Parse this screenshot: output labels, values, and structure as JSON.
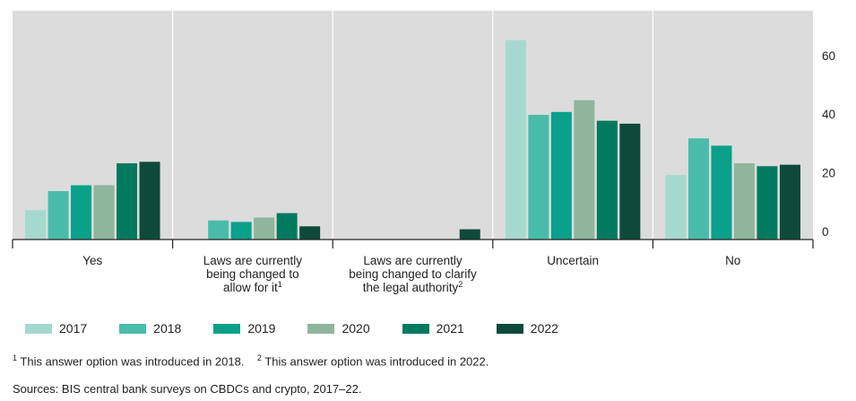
{
  "chart_data": {
    "type": "bar",
    "categories": [
      [
        "Yes"
      ],
      [
        "Laws are currently",
        "being changed to",
        "allow for it"
      ],
      [
        "Laws are currently",
        "being changed to clarify",
        "the legal authority"
      ],
      [
        "Uncertain"
      ],
      [
        "No"
      ]
    ],
    "category_superscripts": [
      "",
      "1",
      "2",
      "",
      ""
    ],
    "series": [
      {
        "name": "2017",
        "color": "#a5d9cf",
        "values": [
          10,
          null,
          null,
          68,
          22
        ]
      },
      {
        "name": "2018",
        "color": "#49bcaa",
        "values": [
          16.5,
          6.5,
          null,
          42.5,
          34.5
        ]
      },
      {
        "name": "2019",
        "color": "#0aa08a",
        "values": [
          18.5,
          6,
          null,
          43.5,
          32
        ]
      },
      {
        "name": "2020",
        "color": "#8fb59c",
        "values": [
          18.5,
          7.5,
          null,
          47.5,
          26
        ]
      },
      {
        "name": "2021",
        "color": "#007a5e",
        "values": [
          26,
          9,
          null,
          40.5,
          25
        ]
      },
      {
        "name": "2022",
        "color": "#0e4a3a",
        "values": [
          26.5,
          4.5,
          3.5,
          39.5,
          25.5
        ]
      }
    ],
    "y_ticks": [
      0,
      20,
      40,
      60
    ],
    "ylim": [
      0,
      78
    ],
    "y_axis_side": "right",
    "grid": false
  },
  "footnotes": [
    {
      "marker": "1",
      "text": "This answer option was introduced in 2018."
    },
    {
      "marker": "2",
      "text": "This answer option was introduced in 2022."
    }
  ],
  "sources": "Sources: BIS central bank surveys on CBDCs and crypto, 2017–22."
}
